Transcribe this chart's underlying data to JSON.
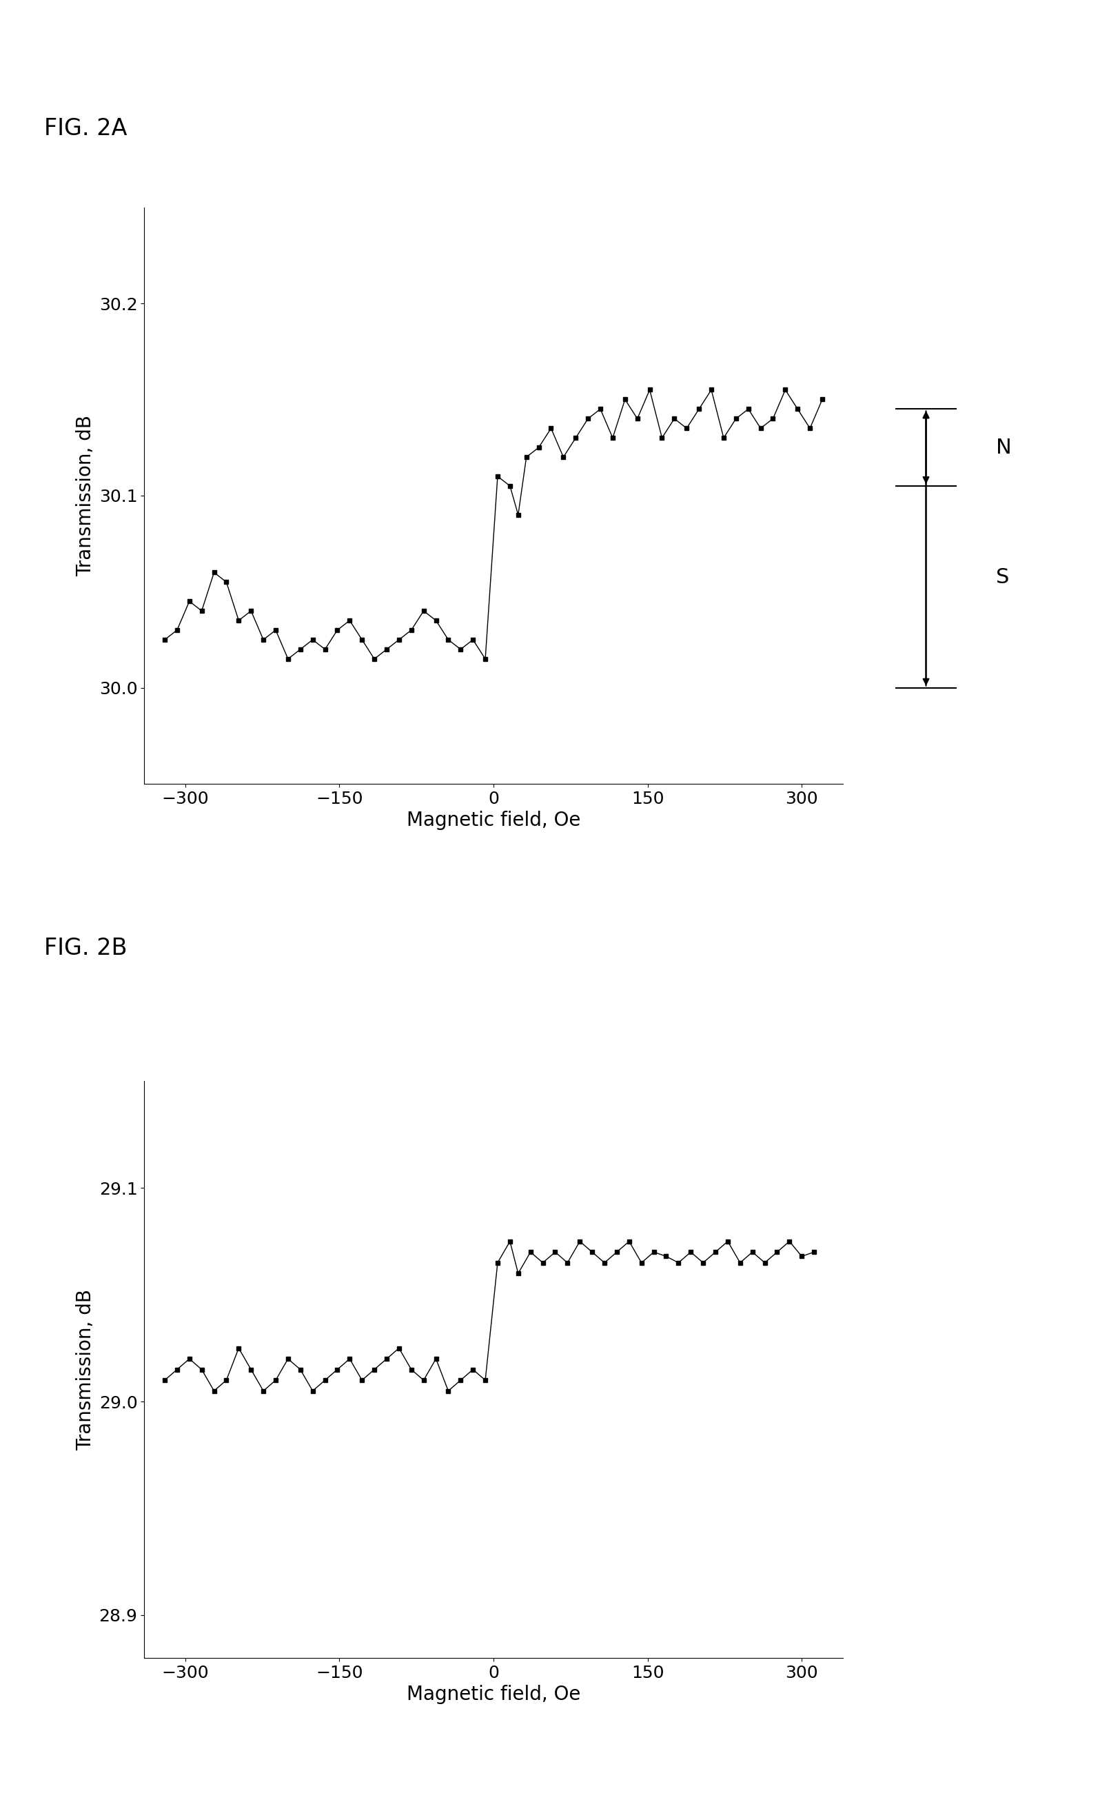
{
  "fig_label_a": "FIG. 2A",
  "fig_label_b": "FIG. 2B",
  "xlabel": "Magnetic field, Oe",
  "ylabel": "Transmission, dB",
  "background_color": "#ffffff",
  "text_color": "#000000",
  "line_color": "#000000",
  "marker": "s",
  "markersize": 5,
  "plot_a": {
    "ylim": [
      29.95,
      30.25
    ],
    "yticks": [
      30.0,
      30.1,
      30.2
    ],
    "xlim": [
      -340,
      340
    ],
    "xticks": [
      -300,
      -150,
      0,
      150,
      300
    ],
    "x": [
      -320,
      -308,
      -296,
      -284,
      -272,
      -260,
      -248,
      -236,
      -224,
      -212,
      -200,
      -188,
      -176,
      -164,
      -152,
      -140,
      -128,
      -116,
      -104,
      -92,
      -80,
      -68,
      -56,
      -44,
      -32,
      -20,
      -8,
      4,
      16,
      24,
      32,
      44,
      56,
      68,
      80,
      92,
      104,
      116,
      128,
      140,
      152,
      164,
      176,
      188,
      200,
      212,
      224,
      236,
      248,
      260,
      272,
      284,
      296,
      308,
      320
    ],
    "y": [
      30.025,
      30.03,
      30.045,
      30.04,
      30.06,
      30.055,
      30.035,
      30.04,
      30.025,
      30.03,
      30.015,
      30.02,
      30.025,
      30.02,
      30.03,
      30.035,
      30.025,
      30.015,
      30.02,
      30.025,
      30.03,
      30.04,
      30.035,
      30.025,
      30.02,
      30.025,
      30.015,
      30.11,
      30.105,
      30.09,
      30.12,
      30.125,
      30.135,
      30.12,
      30.13,
      30.14,
      30.145,
      30.13,
      30.15,
      30.14,
      30.155,
      30.13,
      30.14,
      30.135,
      30.145,
      30.155,
      30.13,
      30.14,
      30.145,
      30.135,
      30.14,
      30.155,
      30.145,
      30.135,
      30.15
    ]
  },
  "plot_b": {
    "ylim": [
      28.88,
      29.15
    ],
    "yticks": [
      28.9,
      29.0,
      29.1
    ],
    "xlim": [
      -340,
      340
    ],
    "xticks": [
      -300,
      -150,
      0,
      150,
      300
    ],
    "x": [
      -320,
      -308,
      -296,
      -284,
      -272,
      -260,
      -248,
      -236,
      -224,
      -212,
      -200,
      -188,
      -176,
      -164,
      -152,
      -140,
      -128,
      -116,
      -104,
      -92,
      -80,
      -68,
      -56,
      -44,
      -32,
      -20,
      -8,
      4,
      16,
      24,
      36,
      48,
      60,
      72,
      84,
      96,
      108,
      120,
      132,
      144,
      156,
      168,
      180,
      192,
      204,
      216,
      228,
      240,
      252,
      264,
      276,
      288,
      300,
      312
    ],
    "y": [
      29.01,
      29.015,
      29.02,
      29.015,
      29.005,
      29.01,
      29.025,
      29.015,
      29.005,
      29.01,
      29.02,
      29.015,
      29.005,
      29.01,
      29.015,
      29.02,
      29.01,
      29.015,
      29.02,
      29.025,
      29.015,
      29.01,
      29.02,
      29.005,
      29.01,
      29.015,
      29.01,
      29.065,
      29.075,
      29.06,
      29.07,
      29.065,
      29.07,
      29.065,
      29.075,
      29.07,
      29.065,
      29.07,
      29.075,
      29.065,
      29.07,
      29.068,
      29.065,
      29.07,
      29.065,
      29.07,
      29.075,
      29.065,
      29.07,
      29.065,
      29.07,
      29.075,
      29.068,
      29.07
    ]
  },
  "N_label": "N",
  "S_label": "S",
  "font_size_label": 22,
  "font_size_axis_label": 20,
  "font_size_tick": 18,
  "font_size_fig_label": 24
}
